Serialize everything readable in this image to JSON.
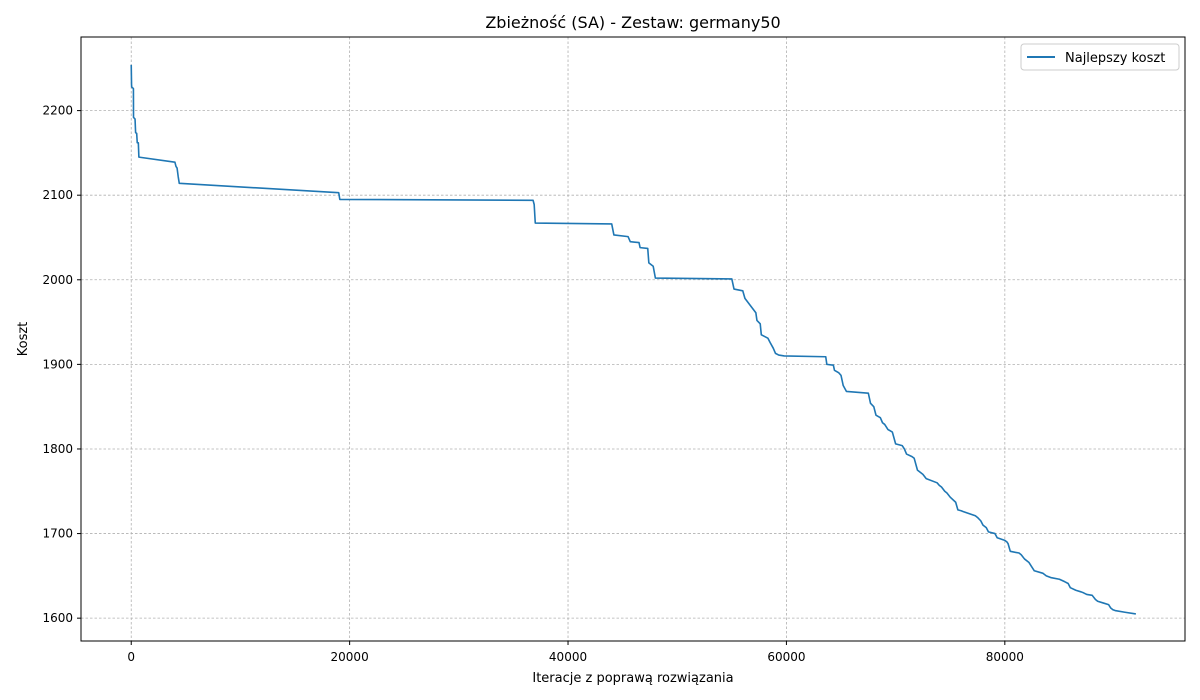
{
  "chart_data": {
    "type": "line",
    "title": "Zbieżność (SA) - Zestaw: germany50",
    "xlabel": "Iteracje z poprawą rozwiązania",
    "ylabel": "Koszt",
    "xlim": [
      -4600,
      96500
    ],
    "ylim": [
      1573,
      2287
    ],
    "xticks": [
      0,
      20000,
      40000,
      60000,
      80000
    ],
    "yticks": [
      1600,
      1700,
      1800,
      1900,
      2000,
      2100,
      2200
    ],
    "grid": true,
    "legend_position": "upper right",
    "series": [
      {
        "name": "Najlepszy koszt",
        "color": "#1f77b4",
        "x": [
          0,
          30,
          40,
          200,
          210,
          350,
          400,
          500,
          550,
          650,
          700,
          4000,
          4100,
          4200,
          4300,
          4400,
          19000,
          19100,
          36800,
          36900,
          37000,
          44000,
          44200,
          45500,
          45700,
          46500,
          46600,
          47300,
          47400,
          47800,
          48000,
          55000,
          55200,
          56000,
          56200,
          57200,
          57300,
          57600,
          57700,
          58300,
          58500,
          58800,
          59000,
          59300,
          59800,
          63600,
          63700,
          64300,
          64400,
          64800,
          65000,
          65200,
          65500,
          67500,
          67700,
          68000,
          68200,
          68600,
          68800,
          69000,
          69300,
          69700,
          70000,
          70600,
          70800,
          71000,
          71500,
          71700,
          72000,
          72500,
          72800,
          73800,
          74000,
          74200,
          74500,
          74700,
          75000,
          75500,
          75700,
          76000,
          76200,
          77300,
          77500,
          77800,
          78000,
          78300,
          78500,
          79100,
          79300,
          80000,
          80200,
          80300,
          80500,
          81300,
          81500,
          81800,
          82200,
          82500,
          82700,
          83500,
          83800,
          84200,
          85000,
          85500,
          85800,
          86000,
          86500,
          87000,
          87200,
          87500,
          88000,
          88300,
          88500,
          89000,
          89500,
          89700,
          89900,
          90100,
          91000,
          92000
        ],
        "y": [
          2254,
          2230,
          2228,
          2226,
          2192,
          2190,
          2174,
          2173,
          2162,
          2162,
          2145,
          2139,
          2134,
          2132,
          2122,
          2114,
          2103,
          2095,
          2094,
          2089,
          2067,
          2066,
          2053,
          2051,
          2045,
          2044,
          2038,
          2037,
          2020,
          2016,
          2002,
          2001,
          1989,
          1987,
          1978,
          1961,
          1952,
          1948,
          1935,
          1931,
          1926,
          1919,
          1913,
          1911,
          1910,
          1909,
          1900,
          1899,
          1893,
          1890,
          1887,
          1875,
          1868,
          1866,
          1854,
          1850,
          1840,
          1837,
          1831,
          1829,
          1823,
          1820,
          1806,
          1804,
          1800,
          1794,
          1791,
          1789,
          1775,
          1770,
          1765,
          1760,
          1757,
          1755,
          1750,
          1748,
          1743,
          1737,
          1728,
          1727,
          1726,
          1721,
          1719,
          1715,
          1710,
          1707,
          1702,
          1700,
          1695,
          1692,
          1690,
          1688,
          1679,
          1677,
          1675,
          1670,
          1666,
          1660,
          1656,
          1653,
          1650,
          1648,
          1646,
          1643,
          1641,
          1636,
          1633,
          1631,
          1630,
          1628,
          1627,
          1622,
          1620,
          1618,
          1616,
          1612,
          1610,
          1609,
          1607,
          1605
        ]
      }
    ]
  }
}
